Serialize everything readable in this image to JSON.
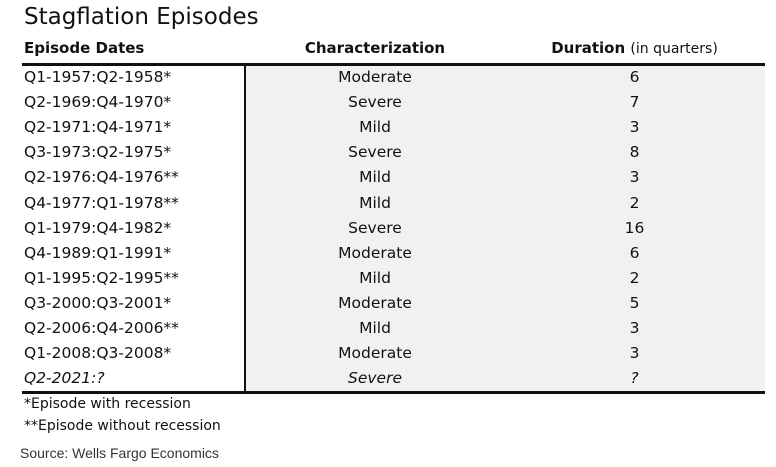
{
  "header": {
    "title": "Stagflation Episodes"
  },
  "table": {
    "columns": [
      "Episode Dates",
      "Characterization",
      "Duration"
    ],
    "column_note": "(in quarters)",
    "rows": [
      [
        "Q1-1957:Q2-1958*",
        "Moderate",
        6
      ],
      [
        "Q2-1969:Q4-1970*",
        "Severe",
        7
      ],
      [
        "Q2-1971:Q4-1971*",
        "Mild",
        3
      ],
      [
        "Q3-1973:Q2-1975*",
        "Severe",
        8
      ],
      [
        "Q2-1976:Q4-1976**",
        "Mild",
        3
      ],
      [
        "Q4-1977:Q1-1978**",
        "Mild",
        2
      ],
      [
        "Q1-1979:Q4-1982*",
        "Severe",
        16
      ],
      [
        "Q4-1989:Q1-1991*",
        "Moderate",
        6
      ],
      [
        "Q1-1995:Q2-1995**",
        "Mild",
        2
      ],
      [
        "Q3-2000:Q3-2001*",
        "Moderate",
        5
      ],
      [
        "Q2-2006:Q4-2006**",
        "Mild",
        3
      ],
      [
        "Q1-2008:Q3-2008*",
        "Moderate",
        3
      ],
      [
        "Q2-2021:?",
        "Severe",
        "?"
      ]
    ]
  },
  "footnotes": [
    "*Episode with recession",
    "**Episode without recession"
  ],
  "source": "Source: Wells Fargo Economics"
}
